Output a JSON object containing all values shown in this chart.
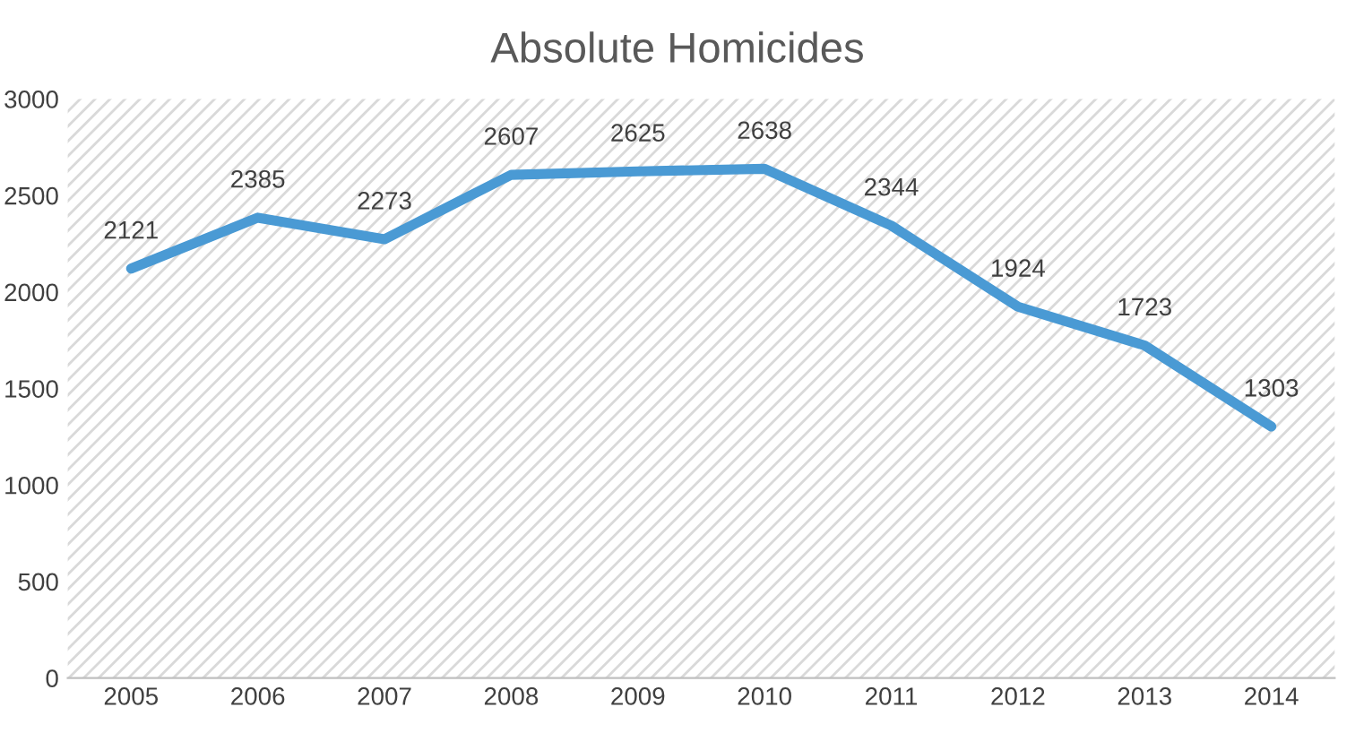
{
  "chart_data": {
    "type": "line",
    "title": "Absolute Homicides",
    "categories": [
      "2005",
      "2006",
      "2007",
      "2008",
      "2009",
      "2010",
      "2011",
      "2012",
      "2013",
      "2014"
    ],
    "series": [
      {
        "color": "#4a9ad4",
        "values": [
          2121,
          2385,
          2273,
          2607,
          2625,
          2638,
          2344,
          1924,
          1723,
          1303
        ]
      }
    ],
    "ylim": [
      0,
      3000
    ],
    "yticks": [
      0,
      500,
      1000,
      1500,
      2000,
      2500,
      3000
    ],
    "data_labels": true,
    "grid": false,
    "legend": false,
    "marker": "none",
    "line_style": "solid"
  }
}
